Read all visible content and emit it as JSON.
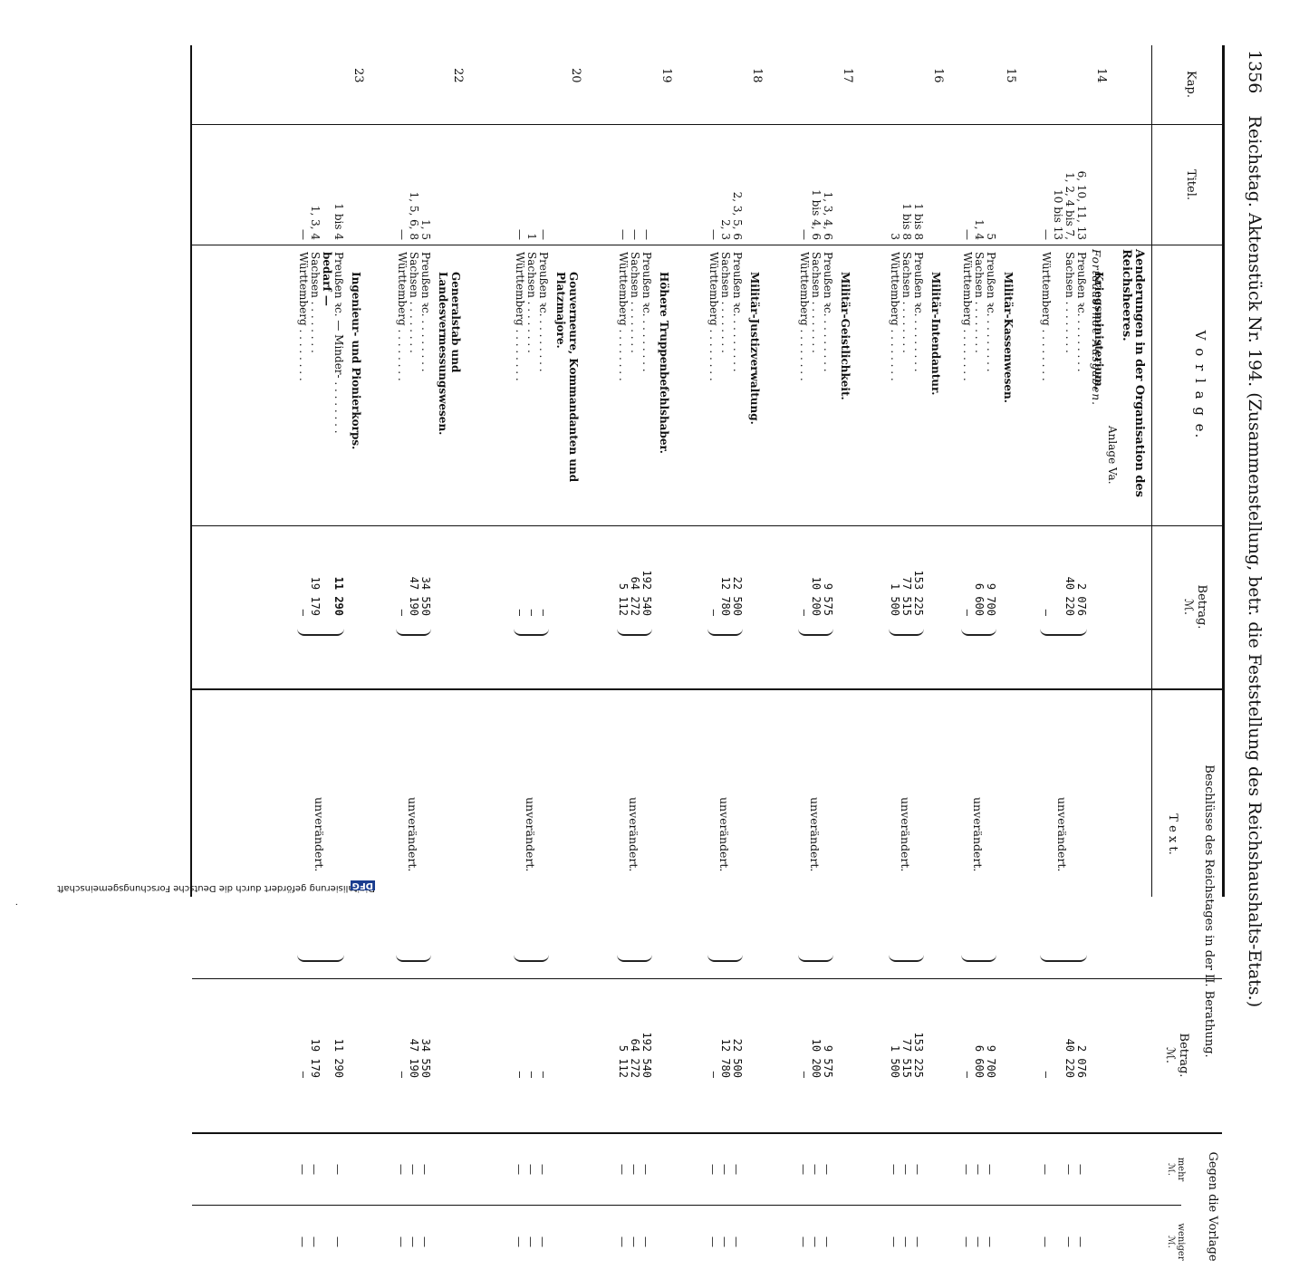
{
  "header": {
    "page_number": "1356",
    "text": "Reichstag. Aktenstück Nr. 194. (Zusammenstellung, betr. die Feststellung des Reichshaushalts-Etats.)",
    "doc_no": "194"
  },
  "columns": {
    "kap": "Kap.",
    "titel": "Titel.",
    "vorlage": "V o r l a g e.",
    "betrag": "Betrag.",
    "mark": "ℳ.",
    "beschluesse": "Beschlüsse des Reichstages in der II. Berathung.",
    "text": "T e x t.",
    "gegen": "Gegen die Vorlage",
    "mehr": "mehr",
    "weniger": "weniger"
  },
  "intro": {
    "title": "Aenderungen in der Organisation des Reichsheeres.",
    "anlage": "Anlage Va.",
    "subtitle": "Fortdauernde Ausgaben."
  },
  "rows": [
    {
      "kap": "14",
      "section": "Kriegsministerium.",
      "titel": [
        "6, 10, 11, 13",
        "1, 2, 4 bis 7,",
        "10 bis 13",
        "—"
      ],
      "labels": [
        "Preußen ꝛc.",
        "Sachsen",
        "",
        "Württemberg"
      ],
      "betrag": [
        "2 076",
        "40 220",
        "",
        "—"
      ],
      "text": "unverändert.",
      "betrag2": [
        "2 076",
        "40 220",
        "",
        "—"
      ]
    },
    {
      "kap": "15",
      "section": "Militär-Kassenwesen.",
      "titel": [
        "5",
        "1, 4",
        "—"
      ],
      "labels": [
        "Preußen ꝛc.",
        "Sachsen",
        "Württemberg"
      ],
      "betrag": [
        "9 700",
        "6 600",
        "—"
      ],
      "text": "unverändert.",
      "betrag2": [
        "9 700",
        "6 600",
        "—"
      ]
    },
    {
      "kap": "16",
      "section": "Militär-Intendantur.",
      "titel": [
        "1 bis 8",
        "1 bis 8",
        "3"
      ],
      "labels": [
        "Preußen ꝛc.",
        "Sachsen",
        "Württemberg"
      ],
      "betrag": [
        "153 225",
        "77 515",
        "1 500"
      ],
      "text": "unverändert.",
      "betrag2": [
        "153 225",
        "77 515",
        "1 500"
      ]
    },
    {
      "kap": "17",
      "section": "Militär-Geistlichkeit.",
      "titel": [
        "1, 3, 4, 6",
        "1 bis 4, 6",
        "—"
      ],
      "labels": [
        "Preußen ꝛc.",
        "Sachsen",
        "Württemberg"
      ],
      "betrag": [
        "9 575",
        "10 200",
        "—"
      ],
      "text": "unverändert.",
      "betrag2": [
        "9 575",
        "10 200",
        "—"
      ]
    },
    {
      "kap": "18",
      "section": "Militär-Justizverwaltung.",
      "titel": [
        "2, 3, 5, 6",
        "2, 3",
        "—"
      ],
      "labels": [
        "Preußen ꝛc.",
        "Sachsen",
        "Württemberg"
      ],
      "betrag": [
        "22 500",
        "12 780",
        "—"
      ],
      "text": "unverändert.",
      "betrag2": [
        "22 500",
        "12 780",
        "—"
      ]
    },
    {
      "kap": "19",
      "section": "Höhere Truppenbefehlshaber.",
      "titel": [
        "—",
        "—",
        "—"
      ],
      "labels": [
        "Preußen ꝛc.",
        "Sachsen",
        "Württemberg"
      ],
      "betrag": [
        "192 540",
        "64 272",
        "5 112"
      ],
      "text": "unverändert.",
      "betrag2": [
        "192 540",
        "64 272",
        "5 112"
      ]
    },
    {
      "kap": "20",
      "section": "Gouverneure, Kommandanten und Platzmajore.",
      "titel": [
        "—",
        "1",
        "—"
      ],
      "labels": [
        "Preußen ꝛc.",
        "Sachsen",
        "Württemberg"
      ],
      "betrag": [
        "—",
        "—",
        "—"
      ],
      "text": "unverändert.",
      "betrag2": [
        "—",
        "—",
        "—"
      ]
    },
    {
      "kap": "22",
      "section": "Generalstab und Landesvermessungswesen.",
      "titel": [
        "1, 5",
        "1, 5, 6, 8",
        "—"
      ],
      "labels": [
        "Preußen ꝛc.",
        "Sachsen",
        "Württemberg"
      ],
      "betrag": [
        "34 550",
        "47 190",
        "—"
      ],
      "text": "unverändert.",
      "betrag2": [
        "34 550",
        "47 190",
        "—"
      ]
    },
    {
      "kap": "23",
      "section": "Ingenieur- und Pionierkorps.",
      "titel": [
        "1 bis 4",
        "",
        "1, 3, 4",
        "—"
      ],
      "labels": [
        "Preußen ꝛc. — Minder-",
        "bedarf —",
        "Sachsen",
        "Württemberg"
      ],
      "betrag": [
        "11 290",
        "",
        "19 179",
        "—"
      ],
      "text": "unverändert.",
      "betrag2": [
        "11 290",
        "",
        "19 179",
        "—"
      ]
    }
  ],
  "credit": "Digitalisierung gefördert durch die Deutsche Forschungsgemeinschaft",
  "credit_logo": "DFG"
}
